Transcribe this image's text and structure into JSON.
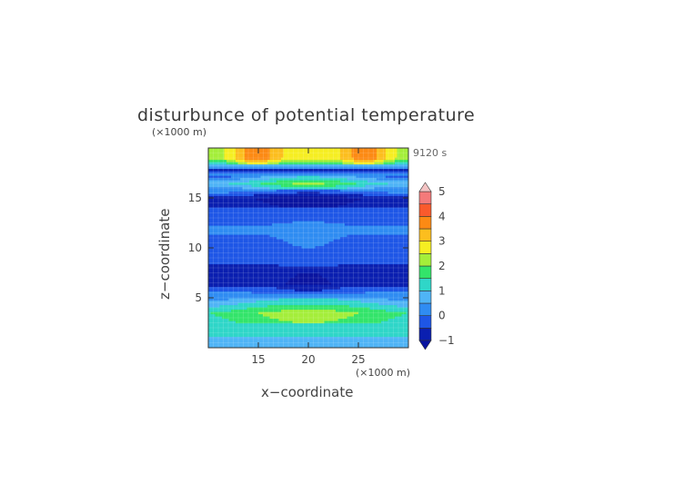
{
  "chart_data": {
    "type": "heatmap",
    "title": "disturbunce of potential temperature",
    "y_unit": "(×1000 m)",
    "x_unit": "(×1000 m)",
    "time_label": "9120 s",
    "xlabel": "x−coordinate",
    "ylabel": "z−coordinate",
    "xlim": [
      10,
      30
    ],
    "ylim": [
      0,
      20
    ],
    "x_ticks": [
      15,
      20,
      25
    ],
    "y_ticks": [
      5,
      10,
      15
    ],
    "colorbar": {
      "levels": [
        -1,
        -0.5,
        0,
        0.5,
        1,
        1.5,
        2,
        2.5,
        3,
        3.5,
        4,
        4.5,
        5
      ],
      "tick_labels": [
        -1,
        0,
        1,
        2,
        3,
        4,
        5
      ],
      "colors": [
        "#0a1fb0",
        "#1e56e6",
        "#2f8cf2",
        "#4fb4f6",
        "#2fd6c8",
        "#33e46a",
        "#a4ee3a",
        "#f6ee22",
        "#fcbe1e",
        "#fc8a14",
        "#fa5a2c",
        "#f47a7a",
        "#f6aaaa"
      ],
      "under_color": "#0a14a0",
      "over_color": "#f4c4c4"
    },
    "bands": [
      {
        "z": 0.5,
        "value": 0.5
      },
      {
        "z": 1.5,
        "value": 1.2
      },
      {
        "z": 3.5,
        "value": 1.8
      },
      {
        "z": 6.5,
        "value": -0.8
      },
      {
        "z": 12.0,
        "value": 0.1
      },
      {
        "z": 15.0,
        "value": -0.8
      },
      {
        "z": 16.5,
        "value": 1.5
      },
      {
        "z": 17.8,
        "value": -0.6
      },
      {
        "z": 19.0,
        "value": 2.2
      }
    ]
  }
}
